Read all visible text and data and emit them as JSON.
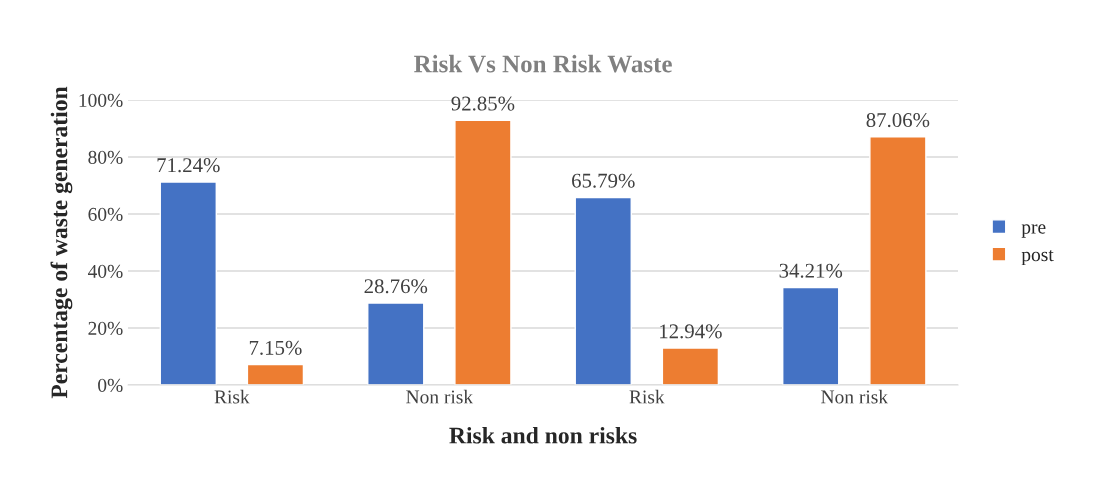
{
  "chart_data": {
    "type": "bar",
    "title": "Risk Vs Non Risk Waste",
    "xlabel": "Risk and non risks",
    "ylabel": "Percentage of waste generation",
    "categories": [
      "Risk",
      "Non risk",
      "Risk",
      "Non risk"
    ],
    "series": [
      {
        "name": "pre",
        "color": "#4472c4",
        "values": [
          71.24,
          28.76,
          65.79,
          34.21
        ],
        "value_labels": [
          "71.24%",
          "28.76%",
          "65.79%",
          "34.21%"
        ]
      },
      {
        "name": "post",
        "color": "#ed7d31",
        "values": [
          7.15,
          92.85,
          12.94,
          87.06
        ],
        "value_labels": [
          "7.15%",
          "92.85%",
          "12.94%",
          "87.06%"
        ]
      }
    ],
    "ylim": [
      0,
      100
    ],
    "yticks": [
      {
        "value": 0,
        "label": "0%"
      },
      {
        "value": 20,
        "label": "20%"
      },
      {
        "value": 40,
        "label": "40%"
      },
      {
        "value": 60,
        "label": "60%"
      },
      {
        "value": 80,
        "label": "80%"
      },
      {
        "value": 100,
        "label": "100%"
      }
    ],
    "grid": "y",
    "legend": "right"
  }
}
